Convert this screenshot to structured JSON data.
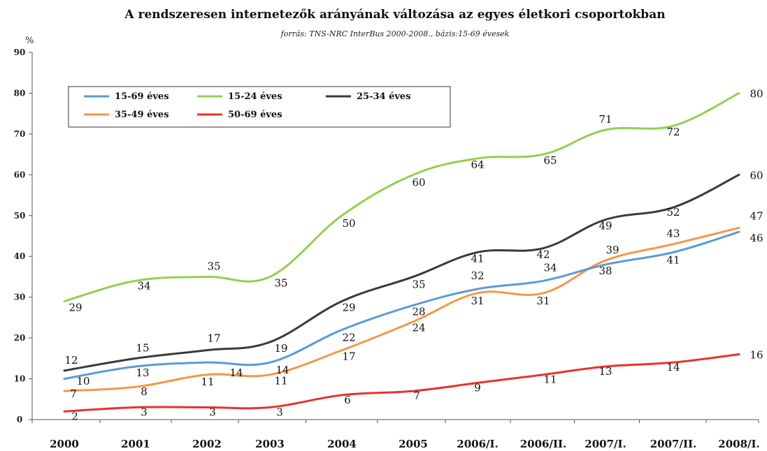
{
  "chart_data": {
    "type": "line",
    "title": "A rendszeresen internetezők arányának változása az egyes életkori csoportokban",
    "subtitle": "forrás: TNS-NRC InterBus 2000-2008., bázis:15-69 évesek",
    "ylabel": "%",
    "xlabel": "",
    "ylim": [
      0,
      90
    ],
    "yticks": [
      0,
      10,
      20,
      30,
      40,
      50,
      60,
      70,
      80,
      90
    ],
    "grid": false,
    "legend_position": "top-left",
    "categories": [
      "2000",
      "2001",
      "2002",
      "2003",
      "2004",
      "2005",
      "2006/I.",
      "2006/II.",
      "2007/I.",
      "2007/II.",
      "2008/I."
    ],
    "series": [
      {
        "name": "15-69 éves",
        "color": "#5b9bd5",
        "values": [
          10,
          13,
          14,
          14,
          22,
          28,
          32,
          34,
          38,
          41,
          46
        ]
      },
      {
        "name": "15-24 éves",
        "color": "#92d050",
        "values": [
          29,
          34,
          35,
          35,
          50,
          60,
          64,
          65,
          71,
          72,
          80
        ]
      },
      {
        "name": "25-34 éves",
        "color": "#3a3a3a",
        "values": [
          12,
          15,
          17,
          19,
          29,
          35,
          41,
          42,
          49,
          52,
          60
        ]
      },
      {
        "name": "35-49 éves",
        "color": "#f79646",
        "values": [
          7,
          8,
          11,
          11,
          17,
          24,
          31,
          31,
          39,
          43,
          47
        ]
      },
      {
        "name": "50-69 éves",
        "color": "#e8322b",
        "values": [
          2,
          3,
          3,
          3,
          6,
          7,
          9,
          11,
          13,
          14,
          16
        ]
      }
    ]
  }
}
